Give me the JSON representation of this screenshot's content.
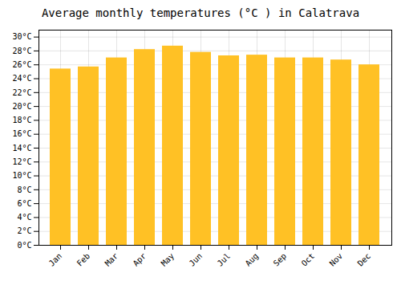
{
  "chart_data": {
    "type": "bar",
    "title": "Average monthly temperatures (°C ) in Calatrava",
    "categories": [
      "Jan",
      "Feb",
      "Mar",
      "Apr",
      "May",
      "Jun",
      "Jul",
      "Aug",
      "Sep",
      "Oct",
      "Nov",
      "Dec"
    ],
    "values": [
      25.4,
      25.7,
      27.0,
      28.2,
      28.7,
      27.8,
      27.3,
      27.4,
      27.0,
      27.0,
      26.7,
      26.0
    ],
    "color": "#FFC125",
    "ylim": [
      0,
      31
    ],
    "yticks": [
      {
        "value": 0,
        "label": "0°C"
      },
      {
        "value": 2,
        "label": "2°C"
      },
      {
        "value": 4,
        "label": "4°C"
      },
      {
        "value": 6,
        "label": "6°C"
      },
      {
        "value": 8,
        "label": "8°C"
      },
      {
        "value": 10,
        "label": "10°C"
      },
      {
        "value": 12,
        "label": "12°C"
      },
      {
        "value": 14,
        "label": "14°C"
      },
      {
        "value": 16,
        "label": "16°C"
      },
      {
        "value": 18,
        "label": "18°C"
      },
      {
        "value": 20,
        "label": "20°C"
      },
      {
        "value": 22,
        "label": "22°C"
      },
      {
        "value": 24,
        "label": "24°C"
      },
      {
        "value": 26,
        "label": "26°C"
      },
      {
        "value": 28,
        "label": "28°C"
      },
      {
        "value": 30,
        "label": "30°C"
      }
    ],
    "grid": true
  }
}
